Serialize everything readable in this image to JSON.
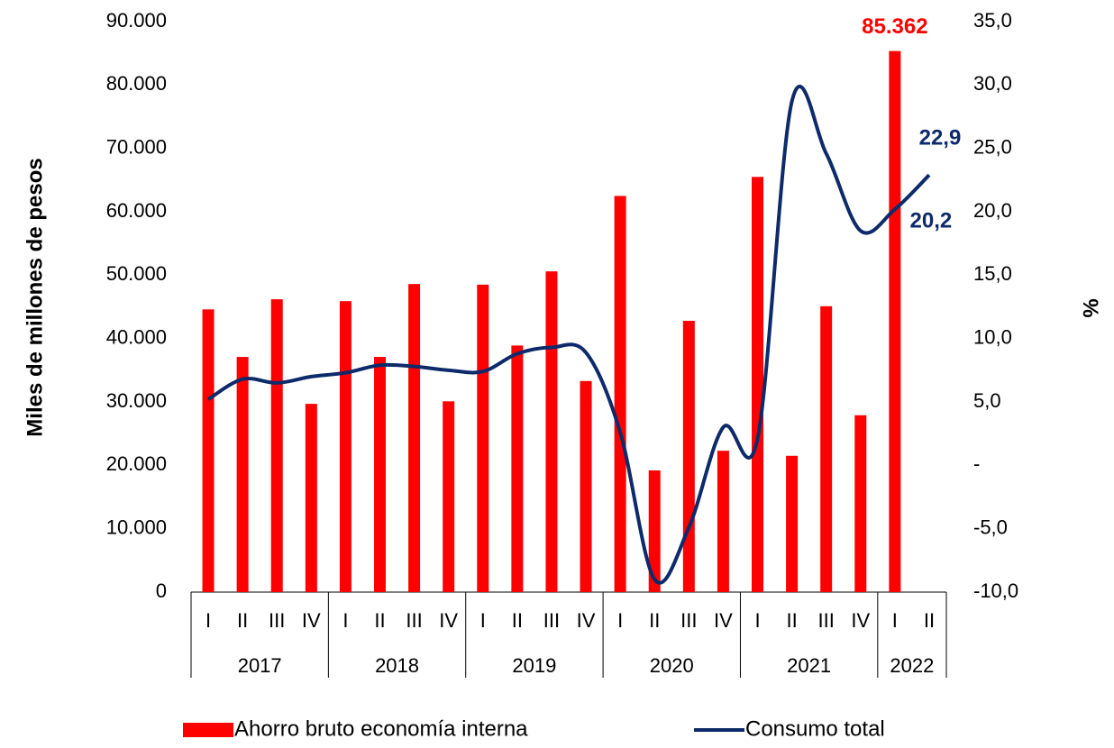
{
  "chart_data": {
    "type": "bar",
    "y_axis_label": "Miles de millones de pesos",
    "y2_axis_label": "%",
    "categories": [
      "I",
      "II",
      "III",
      "IV",
      "I",
      "II",
      "III",
      "IV",
      "I",
      "II",
      "III",
      "IV",
      "I",
      "II",
      "III",
      "IV",
      "I",
      "II",
      "III",
      "IV",
      "I",
      "II"
    ],
    "category_groups": [
      {
        "name": "2017",
        "count": 4
      },
      {
        "name": "2018",
        "count": 4
      },
      {
        "name": "2019",
        "count": 4
      },
      {
        "name": "2020",
        "count": 4
      },
      {
        "name": "2021",
        "count": 4
      },
      {
        "name": "2022",
        "count": 2
      }
    ],
    "ylim": [
      0,
      90000
    ],
    "yticks": [
      0,
      {
        "value": 10000,
        "label": "10.000"
      },
      {
        "value": 20000,
        "label": "20.000"
      },
      {
        "value": 30000,
        "label": "30.000"
      },
      {
        "value": 40000,
        "label": "40.000"
      },
      {
        "value": 50000,
        "label": "50.000"
      },
      {
        "value": 60000,
        "label": "60.000"
      },
      {
        "value": 70000,
        "label": "70.000"
      },
      {
        "value": 80000,
        "label": "80.000"
      },
      {
        "value": 90000,
        "label": "90.000"
      }
    ],
    "y2lim": [
      -10,
      35
    ],
    "y2ticks": [
      {
        "value": -10,
        "label": "-10,0"
      },
      {
        "value": -5,
        "label": "-5,0"
      },
      {
        "value": 0,
        "label": "-"
      },
      {
        "value": 5,
        "label": "5,0"
      },
      {
        "value": 10,
        "label": "10,0"
      },
      {
        "value": 15,
        "label": "15,0"
      },
      {
        "value": 20,
        "label": "20,0"
      },
      {
        "value": 25,
        "label": "25,0"
      },
      {
        "value": 30,
        "label": "30,0"
      },
      {
        "value": 35,
        "label": "35,0"
      }
    ],
    "grid": false,
    "legend": "bottom",
    "series": [
      {
        "name": "Ahorro bruto economía interna",
        "type": "bar",
        "color": "#ff0000",
        "values": [
          44600,
          37100,
          46200,
          29700,
          45900,
          37100,
          48600,
          30100,
          48500,
          38900,
          50600,
          33300,
          62500,
          19200,
          42800,
          22300,
          65500,
          21500,
          45100,
          27900,
          85362,
          null
        ],
        "value_labels": [
          null,
          null,
          null,
          null,
          null,
          null,
          null,
          null,
          null,
          null,
          null,
          null,
          null,
          null,
          null,
          null,
          null,
          null,
          null,
          null,
          "85.362",
          null
        ]
      },
      {
        "name": "Consumo total",
        "type": "line",
        "axis": "y2",
        "color": "#0d2a6b",
        "values": [
          5.2,
          6.8,
          6.5,
          7.0,
          7.3,
          7.9,
          7.8,
          7.5,
          7.4,
          8.8,
          9.3,
          8.9,
          2.6,
          -9.0,
          -4.9,
          3.0,
          2.1,
          28.7,
          24.6,
          18.5,
          20.2,
          22.9
        ],
        "value_labels": [
          null,
          null,
          null,
          null,
          null,
          null,
          null,
          null,
          null,
          null,
          null,
          null,
          null,
          null,
          null,
          null,
          null,
          null,
          null,
          null,
          "20,2",
          "22,9"
        ]
      }
    ]
  }
}
